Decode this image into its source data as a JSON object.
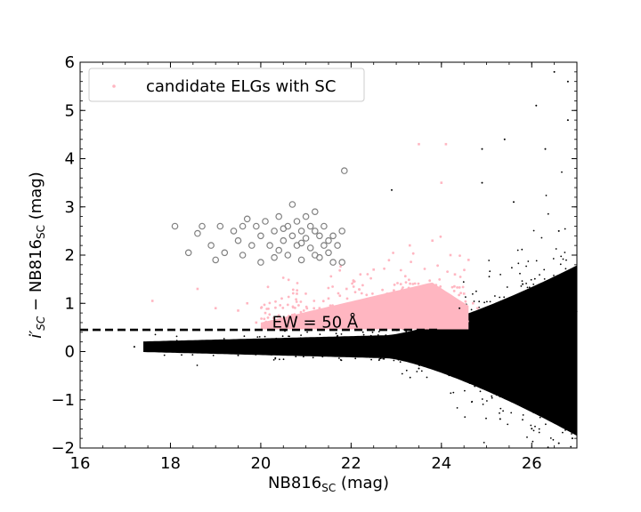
{
  "chart_data": {
    "type": "scatter",
    "xlabel_main": "NB816",
    "xlabel_sub": "SC",
    "xlabel_unit": " (mag)",
    "ylabel_prime": "i′",
    "ylabel_sub1": "SC",
    "ylabel_mid": " − NB816",
    "ylabel_sub2": "SC",
    "ylabel_unit": " (mag)",
    "xlim": [
      16,
      27
    ],
    "ylim": [
      -2,
      6
    ],
    "x_ticks": [
      16,
      18,
      20,
      22,
      24,
      26
    ],
    "y_ticks": [
      -2,
      -1,
      0,
      1,
      2,
      3,
      4,
      5,
      6
    ],
    "x_tick_labels": [
      "16",
      "18",
      "20",
      "22",
      "24",
      "26"
    ],
    "y_tick_labels": [
      "−2",
      "−1",
      "0",
      "1",
      "2",
      "3",
      "4",
      "5",
      "6"
    ],
    "legend": {
      "location": "upper-left",
      "entries": [
        "candidate ELGs with SC"
      ]
    },
    "annotation": {
      "text": "EW = 50 Å",
      "x": 20.25,
      "y": 0.5
    },
    "threshold_line": {
      "style": "dashed",
      "x": [
        16,
        24
      ],
      "y": [
        0.45,
        0.45
      ]
    },
    "series": [
      {
        "name": "candidate ELGs with SC",
        "color": "#ffb6c1",
        "marker": "dot",
        "points": [
          [
            17.6,
            1.05
          ],
          [
            18.6,
            1.3
          ],
          [
            19.0,
            0.9
          ],
          [
            19.5,
            0.85
          ],
          [
            19.7,
            1.0
          ],
          [
            20.1,
            0.8
          ],
          [
            20.4,
            0.75
          ],
          [
            20.8,
            1.2
          ],
          [
            21.0,
            0.7
          ],
          [
            21.3,
            0.9
          ],
          [
            21.5,
            1.1
          ],
          [
            21.7,
            0.8
          ],
          [
            21.9,
            1.3
          ],
          [
            22.0,
            0.6
          ],
          [
            22.2,
            0.75
          ],
          [
            22.4,
            1.0
          ],
          [
            22.5,
            1.7
          ],
          [
            22.6,
            0.9
          ],
          [
            22.8,
            1.2
          ],
          [
            23.0,
            0.75
          ],
          [
            23.1,
            1.4
          ],
          [
            23.2,
            1.0
          ],
          [
            23.3,
            2.2
          ],
          [
            23.4,
            0.85
          ],
          [
            23.5,
            4.3
          ],
          [
            23.6,
            1.3
          ],
          [
            23.7,
            0.9
          ],
          [
            23.8,
            2.3
          ],
          [
            23.9,
            1.1
          ],
          [
            24.0,
            0.8
          ],
          [
            24.0,
            3.5
          ],
          [
            24.1,
            4.3
          ],
          [
            24.2,
            2.0
          ],
          [
            24.3,
            1.6
          ],
          [
            24.4,
            0.85
          ],
          [
            24.5,
            1.2
          ],
          [
            24.6,
            1.9
          ],
          [
            24.7,
            1.0
          ],
          [
            24.8,
            0.9
          ],
          [
            23.0,
            0.55
          ],
          [
            22.7,
            0.6
          ],
          [
            21.2,
            0.55
          ],
          [
            20.6,
            0.65
          ],
          [
            19.9,
            0.6
          ]
        ]
      },
      {
        "name": "",
        "color": "#808080",
        "marker": "circle",
        "points": [
          [
            18.1,
            2.6
          ],
          [
            18.4,
            2.05
          ],
          [
            18.6,
            2.45
          ],
          [
            18.7,
            2.6
          ],
          [
            18.9,
            2.2
          ],
          [
            19.0,
            1.9
          ],
          [
            19.1,
            2.6
          ],
          [
            19.2,
            2.05
          ],
          [
            19.4,
            2.5
          ],
          [
            19.5,
            2.3
          ],
          [
            19.6,
            2.6
          ],
          [
            19.7,
            2.75
          ],
          [
            19.8,
            2.2
          ],
          [
            19.9,
            2.6
          ],
          [
            20.0,
            2.4
          ],
          [
            20.0,
            1.85
          ],
          [
            20.1,
            2.7
          ],
          [
            20.2,
            2.2
          ],
          [
            20.3,
            2.5
          ],
          [
            20.3,
            1.95
          ],
          [
            20.4,
            2.8
          ],
          [
            20.5,
            2.3
          ],
          [
            20.6,
            2.6
          ],
          [
            20.6,
            2.0
          ],
          [
            20.7,
            2.4
          ],
          [
            20.7,
            3.05
          ],
          [
            20.8,
            2.2
          ],
          [
            20.8,
            2.7
          ],
          [
            20.9,
            2.5
          ],
          [
            20.9,
            1.9
          ],
          [
            21.0,
            2.35
          ],
          [
            21.0,
            2.8
          ],
          [
            21.1,
            2.15
          ],
          [
            21.1,
            2.6
          ],
          [
            21.2,
            2.0
          ],
          [
            21.2,
            2.9
          ],
          [
            21.3,
            2.4
          ],
          [
            21.3,
            1.95
          ],
          [
            21.4,
            2.2
          ],
          [
            21.4,
            2.6
          ],
          [
            21.5,
            2.3
          ],
          [
            21.5,
            2.05
          ],
          [
            21.6,
            2.4
          ],
          [
            21.6,
            1.85
          ],
          [
            21.7,
            2.2
          ],
          [
            21.8,
            1.85
          ],
          [
            21.8,
            2.5
          ],
          [
            21.85,
            3.75
          ],
          [
            20.5,
            2.55
          ],
          [
            20.9,
            2.25
          ],
          [
            21.2,
            2.5
          ],
          [
            20.4,
            2.1
          ],
          [
            19.6,
            2.0
          ]
        ]
      },
      {
        "name": "",
        "color": "#000000",
        "marker": "dot",
        "points": [
          [
            17.2,
            0.1
          ],
          [
            17.8,
            0.05
          ],
          [
            18.2,
            0.15
          ],
          [
            18.6,
            0.1
          ],
          [
            19.0,
            0.02
          ],
          [
            19.4,
            0.12
          ],
          [
            19.8,
            0.08
          ],
          [
            20.2,
            0.1
          ],
          [
            20.6,
            0.05
          ],
          [
            21.0,
            0.15
          ],
          [
            21.4,
            0.1
          ],
          [
            21.8,
            0.05
          ],
          [
            22.2,
            0.12
          ],
          [
            22.6,
            0.08
          ],
          [
            23.0,
            0.1
          ],
          [
            23.4,
            0.15
          ],
          [
            23.8,
            0.05
          ],
          [
            24.2,
            0.2
          ],
          [
            24.6,
            -0.3
          ],
          [
            25.0,
            0.6
          ],
          [
            25.4,
            -0.6
          ],
          [
            25.8,
            1.4
          ],
          [
            26.2,
            -1.3
          ],
          [
            26.6,
            2.5
          ],
          [
            26.9,
            -1.8
          ],
          [
            22.9,
            3.35
          ],
          [
            24.9,
            4.2
          ],
          [
            25.4,
            4.4
          ],
          [
            26.1,
            5.1
          ],
          [
            26.5,
            5.8
          ],
          [
            26.8,
            5.6
          ],
          [
            24.9,
            3.5
          ],
          [
            25.6,
            3.1
          ],
          [
            26.3,
            4.2
          ],
          [
            26.8,
            4.8
          ],
          [
            25.3,
            -1.4
          ],
          [
            26.0,
            -1.6
          ],
          [
            26.6,
            -1.9
          ],
          [
            24.4,
            0.9
          ],
          [
            23.5,
            -0.35
          ],
          [
            22.0,
            -0.05
          ],
          [
            19.5,
            -0.08
          ]
        ]
      }
    ]
  }
}
